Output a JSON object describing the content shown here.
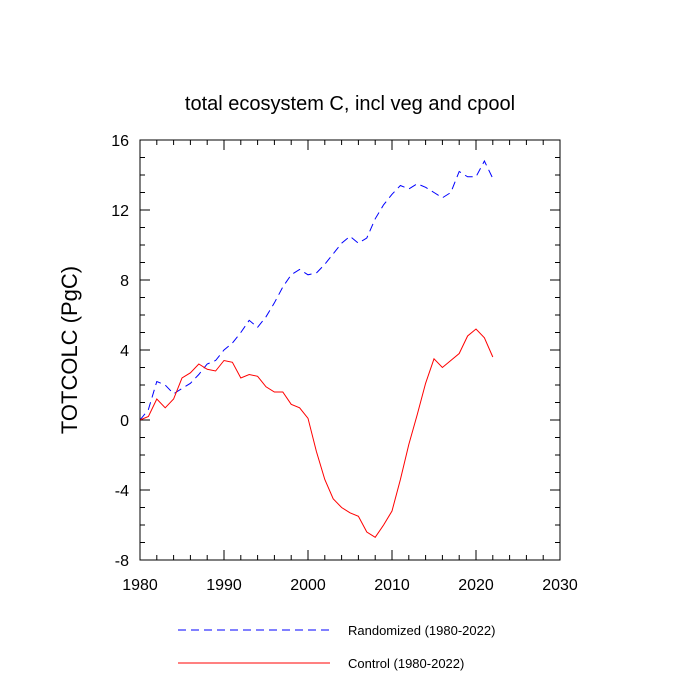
{
  "chart_data": {
    "type": "line",
    "title": "total ecosystem C, incl veg and cpool",
    "xlabel": "",
    "ylabel": "TOTCOLC  (PgC)",
    "xlim": [
      1980,
      2030
    ],
    "ylim": [
      -8,
      16
    ],
    "x_ticks": [
      1980,
      1990,
      2000,
      2010,
      2020,
      2030
    ],
    "x_tick_labels": [
      "1980",
      "1990",
      "2000",
      "2010",
      "2020",
      "2030"
    ],
    "y_ticks": [
      -8,
      -4,
      0,
      4,
      8,
      12,
      16
    ],
    "y_tick_labels": [
      "-8",
      "-4",
      "0",
      "4",
      "8",
      "12",
      "16"
    ],
    "x_minor_step": 2,
    "y_minor_step": 1,
    "grid": false,
    "legend_position": "bottom",
    "series": [
      {
        "name": "Randomized (1980-2022)",
        "color": "#0000ff",
        "style": "dashed",
        "x": [
          1980,
          1981,
          1982,
          1983,
          1984,
          1985,
          1986,
          1987,
          1988,
          1989,
          1990,
          1991,
          1992,
          1993,
          1994,
          1995,
          1996,
          1997,
          1998,
          1999,
          2000,
          2001,
          2002,
          2003,
          2004,
          2005,
          2006,
          2007,
          2008,
          2009,
          2010,
          2011,
          2012,
          2013,
          2014,
          2015,
          2016,
          2017,
          2018,
          2019,
          2020,
          2021,
          2022
        ],
        "y": [
          0.0,
          0.6,
          2.2,
          2.0,
          1.5,
          1.8,
          2.1,
          2.6,
          3.2,
          3.4,
          4.0,
          4.4,
          5.0,
          5.7,
          5.3,
          5.9,
          6.7,
          7.6,
          8.3,
          8.6,
          8.3,
          8.4,
          8.9,
          9.5,
          10.1,
          10.5,
          10.1,
          10.4,
          11.5,
          12.3,
          12.9,
          13.4,
          13.2,
          13.5,
          13.3,
          13.0,
          12.7,
          13.0,
          14.2,
          13.9,
          13.9,
          14.8,
          13.8
        ]
      },
      {
        "name": "Control (1980-2022)",
        "color": "#ff0000",
        "style": "solid",
        "x": [
          1980,
          1981,
          1982,
          1983,
          1984,
          1985,
          1986,
          1987,
          1988,
          1989,
          1990,
          1991,
          1992,
          1993,
          1994,
          1995,
          1996,
          1997,
          1998,
          1999,
          2000,
          2001,
          2002,
          2003,
          2004,
          2005,
          2006,
          2007,
          2008,
          2009,
          2010,
          2011,
          2012,
          2013,
          2014,
          2015,
          2016,
          2017,
          2018,
          2019,
          2020,
          2021,
          2022
        ],
        "y": [
          0.0,
          0.2,
          1.2,
          0.7,
          1.2,
          2.4,
          2.7,
          3.2,
          2.9,
          2.8,
          3.4,
          3.3,
          2.4,
          2.6,
          2.5,
          1.9,
          1.6,
          1.6,
          0.9,
          0.7,
          0.1,
          -1.8,
          -3.4,
          -4.5,
          -5.0,
          -5.3,
          -5.5,
          -6.4,
          -6.7,
          -6.0,
          -5.2,
          -3.4,
          -1.4,
          0.3,
          2.1,
          3.5,
          3.0,
          3.4,
          3.8,
          4.8,
          5.2,
          4.7,
          3.6
        ]
      }
    ]
  }
}
